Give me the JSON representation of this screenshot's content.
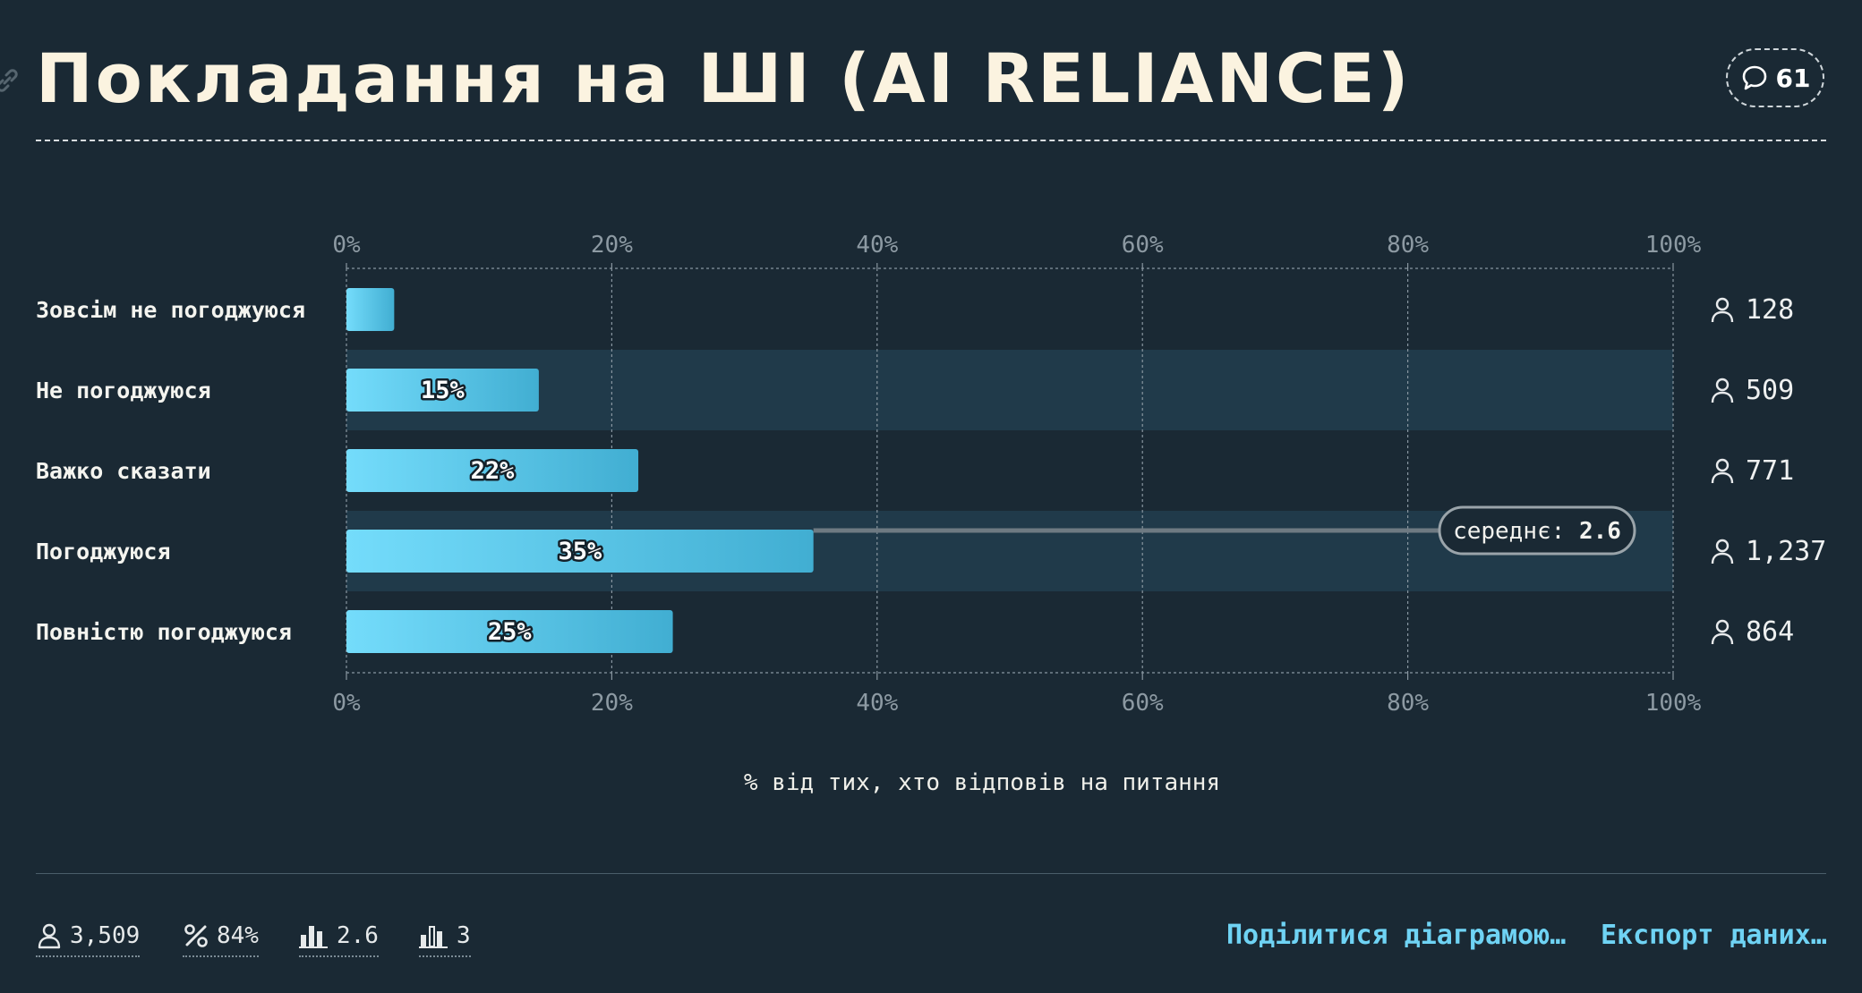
{
  "header": {
    "title": "Покладання на ШІ (AI RELIANCE)",
    "comment_count": "61"
  },
  "chart_data": {
    "type": "bar",
    "orientation": "horizontal",
    "categories": [
      "Зовсім не погоджуюся",
      "Не погоджуюся",
      "Важко сказати",
      "Погоджуюся",
      "Повністю погоджуюся"
    ],
    "values": [
      3.6,
      14.5,
      22,
      35.2,
      24.6
    ],
    "value_labels": [
      "",
      "15%",
      "22%",
      "35%",
      "25%"
    ],
    "counts": [
      "128",
      "509",
      "771",
      "1,237",
      "864"
    ],
    "xlim": [
      0,
      100
    ],
    "ticks": [
      "0%",
      "20%",
      "40%",
      "60%",
      "80%",
      "100%"
    ],
    "tick_values": [
      0,
      20,
      40,
      60,
      80,
      100
    ],
    "xlabel": "% від тих, хто відповів на питання",
    "grid": true,
    "mean": {
      "label": "середнє:",
      "value": "2.6",
      "row": 3
    },
    "colors": {
      "bar_start": "#74dcfb",
      "bar_end": "#41aed2",
      "band": "#203a4a",
      "grid": "#8896a0",
      "mean_line": "#6e7a82"
    }
  },
  "footer": {
    "respondents": "3,509",
    "response_rate": "84%",
    "mean": "2.6",
    "median": "3",
    "share_label": "Поділитися діаграмою…",
    "export_label": "Експорт даних…"
  }
}
